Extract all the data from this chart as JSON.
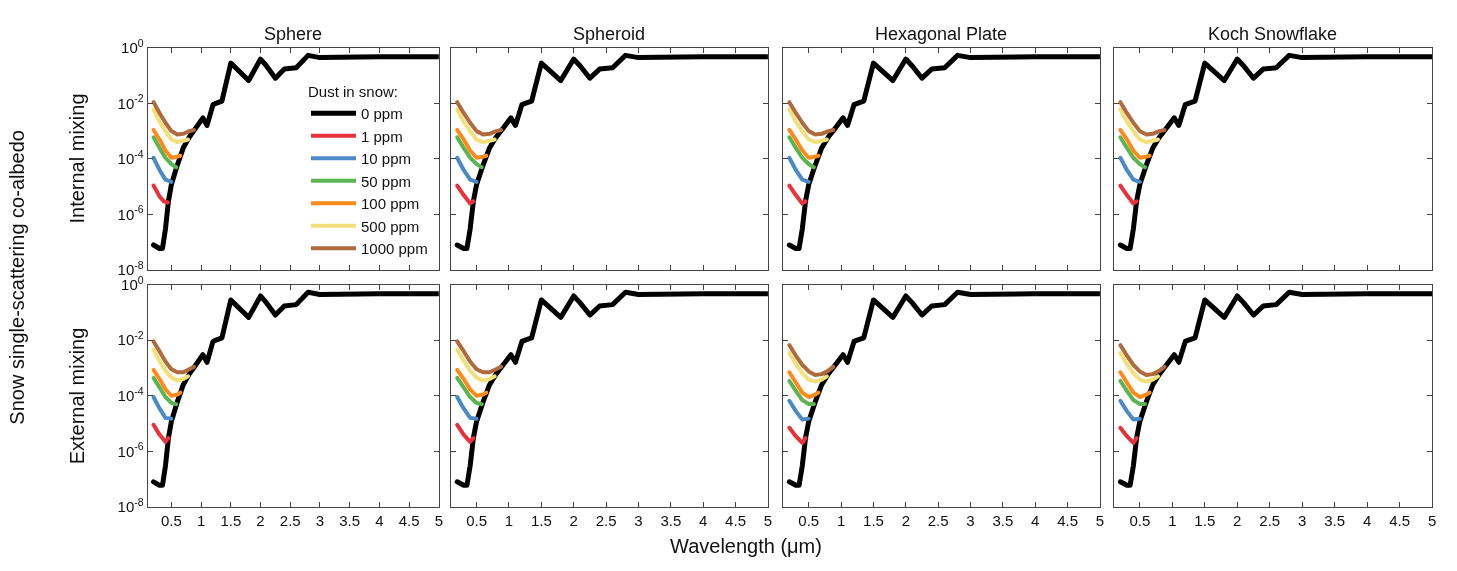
{
  "chart_data": [
    {
      "type": "line",
      "title": "Sphere",
      "ylabel": "Internal mixing",
      "annotations": [
        "Snow single-scattering co-albedo"
      ],
      "legend": "bottom right",
      "legend_title": "Dust in snow:",
      "log": "y",
      "tick_labels": "y",
      "xlim": [
        0.1,
        5
      ],
      "xticks": [
        0.5,
        1,
        1.5,
        2,
        2.5,
        3,
        3.5,
        4,
        4.5,
        5
      ],
      "ylim": [
        1e-08,
        1
      ],
      "yticks": [
        {
          "value": 1e-08,
          "label": "10$^{-8}$"
        },
        {
          "value": 1e-06,
          "label": "10$^{-6}$"
        },
        {
          "value": 0.0001,
          "label": "10$^{-4}$"
        },
        {
          "value": 0.01,
          "label": "10$^{-2}$"
        },
        {
          "value": 1,
          "label": "10$^{0}$"
        }
      ],
      "series": [
        {
          "name": "0 ppm",
          "color": "#000000",
          "x": [
            0.2,
            0.3,
            0.35,
            0.4,
            0.45,
            0.5,
            0.6,
            0.7,
            0.8,
            0.9,
            1.03,
            1.1,
            1.2,
            1.25,
            1.35,
            1.5,
            1.8,
            2.0,
            2.1,
            2.25,
            2.4,
            2.6,
            2.8,
            3.0,
            4.0,
            5.0
          ],
          "values": [
            8e-08,
            6e-08,
            6e-08,
            3e-07,
            3e-06,
            1.2e-05,
            6e-05,
            0.00025,
            0.0006,
            0.0012,
            0.003,
            0.0016,
            0.009,
            0.01,
            0.012,
            0.28,
            0.066,
            0.39,
            0.22,
            0.08,
            0.17,
            0.19,
            0.53,
            0.44,
            0.47,
            0.47
          ]
        },
        {
          "name": "1 ppm",
          "color": "#e8313a",
          "x": [
            0.2,
            0.3,
            0.37,
            0.44
          ],
          "values": [
            1.1e-05,
            4.5e-06,
            3e-06,
            2.7e-06
          ]
        },
        {
          "name": "10 ppm",
          "color": "#4a8ac6",
          "x": [
            0.2,
            0.3,
            0.4,
            0.5
          ],
          "values": [
            0.00011,
            4e-05,
            1.8e-05,
            1.5e-05
          ]
        },
        {
          "name": "50 ppm",
          "color": "#5ab552",
          "x": [
            0.2,
            0.3,
            0.4,
            0.5,
            0.58
          ],
          "values": [
            0.0006,
            0.00025,
            0.00011,
            6.5e-05,
            5e-05
          ]
        },
        {
          "name": "100 ppm",
          "color": "#ff8a1c",
          "x": [
            0.2,
            0.3,
            0.4,
            0.5,
            0.6,
            0.65
          ],
          "values": [
            0.0011,
            0.0005,
            0.0002,
            0.00011,
            0.00012,
            0.00013
          ]
        },
        {
          "name": "500 ppm",
          "color": "#f2e07a",
          "x": [
            0.2,
            0.3,
            0.4,
            0.5,
            0.6,
            0.7,
            0.78
          ],
          "values": [
            0.006,
            0.0022,
            0.001,
            0.0005,
            0.0004,
            0.00045,
            0.0005
          ]
        },
        {
          "name": "1000 ppm",
          "color": "#b06a3e",
          "x": [
            0.2,
            0.3,
            0.4,
            0.5,
            0.6,
            0.7,
            0.8,
            0.88
          ],
          "values": [
            0.011,
            0.0045,
            0.002,
            0.001,
            0.00076,
            0.0008,
            0.001,
            0.0011
          ]
        }
      ]
    },
    {
      "type": "line",
      "title": "Spheroid",
      "log": "y",
      "tick_labels": false,
      "xlim": [
        0.1,
        5
      ],
      "xticks": [
        0.5,
        1,
        1.5,
        2,
        2.5,
        3,
        3.5,
        4,
        4.5,
        5
      ],
      "ylim": [
        1e-08,
        1
      ],
      "yticks": [
        {
          "value": 1e-08,
          "label": "10$^{-8}$"
        },
        {
          "value": 1e-06,
          "label": "10$^{-6}$"
        },
        {
          "value": 0.0001,
          "label": "10$^{-4}$"
        },
        {
          "value": 0.01,
          "label": "10$^{-2}$"
        },
        {
          "value": 1,
          "label": "10$^{0}$"
        }
      ],
      "series": [
        {
          "color": "#000000",
          "x": [
            0.2,
            0.3,
            0.35,
            0.4,
            0.45,
            0.5,
            0.6,
            0.7,
            0.8,
            0.9,
            1.03,
            1.1,
            1.2,
            1.25,
            1.35,
            1.5,
            1.8,
            2.0,
            2.1,
            2.25,
            2.4,
            2.6,
            2.8,
            3.0,
            4.0,
            5.0
          ],
          "values": [
            8e-08,
            6e-08,
            6e-08,
            3e-07,
            3e-06,
            1.2e-05,
            6e-05,
            0.00025,
            0.0006,
            0.0012,
            0.003,
            0.0016,
            0.009,
            0.01,
            0.012,
            0.28,
            0.066,
            0.39,
            0.22,
            0.08,
            0.17,
            0.19,
            0.53,
            0.44,
            0.47,
            0.47
          ]
        },
        {
          "color": "#e8313a",
          "x": [
            0.2,
            0.3,
            0.4,
            0.45
          ],
          "values": [
            1.1e-05,
            5e-06,
            2.5e-06,
            3e-06
          ]
        },
        {
          "color": "#4a8ac6",
          "x": [
            0.2,
            0.3,
            0.4,
            0.5
          ],
          "values": [
            0.00011,
            4e-05,
            1.8e-05,
            1.5e-05
          ]
        },
        {
          "color": "#5ab552",
          "x": [
            0.2,
            0.3,
            0.4,
            0.5,
            0.58
          ],
          "values": [
            0.0006,
            0.00025,
            0.00011,
            6.5e-05,
            5e-05
          ]
        },
        {
          "color": "#ff8a1c",
          "x": [
            0.2,
            0.3,
            0.4,
            0.5,
            0.6,
            0.65
          ],
          "values": [
            0.0011,
            0.0005,
            0.0002,
            0.00011,
            0.00012,
            0.00013
          ]
        },
        {
          "color": "#f2e07a",
          "x": [
            0.2,
            0.3,
            0.4,
            0.5,
            0.6,
            0.7,
            0.78
          ],
          "values": [
            0.006,
            0.0022,
            0.001,
            0.0005,
            0.0004,
            0.00045,
            0.0005
          ]
        },
        {
          "color": "#b06a3e",
          "x": [
            0.2,
            0.3,
            0.4,
            0.5,
            0.6,
            0.7,
            0.8,
            0.88
          ],
          "values": [
            0.011,
            0.0045,
            0.002,
            0.001,
            0.00076,
            0.0008,
            0.001,
            0.0011
          ]
        }
      ]
    },
    {
      "type": "line",
      "title": "Hexagonal Plate",
      "log": "y",
      "tick_labels": false,
      "xlim": [
        0.1,
        5
      ],
      "xticks": [
        0.5,
        1,
        1.5,
        2,
        2.5,
        3,
        3.5,
        4,
        4.5,
        5
      ],
      "ylim": [
        1e-08,
        1
      ],
      "yticks": [
        {
          "value": 1e-08,
          "label": "10$^{-8}$"
        },
        {
          "value": 1e-06,
          "label": "10$^{-6}$"
        },
        {
          "value": 0.0001,
          "label": "10$^{-4}$"
        },
        {
          "value": 0.01,
          "label": "10$^{-2}$"
        },
        {
          "value": 1,
          "label": "10$^{0}$"
        }
      ],
      "series": [
        {
          "color": "#000000",
          "x": [
            0.2,
            0.3,
            0.35,
            0.4,
            0.45,
            0.5,
            0.6,
            0.7,
            0.8,
            0.9,
            1.03,
            1.1,
            1.2,
            1.25,
            1.35,
            1.5,
            1.8,
            2.0,
            2.1,
            2.25,
            2.4,
            2.6,
            2.8,
            3.0,
            4.0,
            5.0
          ],
          "values": [
            8e-08,
            6e-08,
            6e-08,
            3e-07,
            3e-06,
            1.2e-05,
            6e-05,
            0.00025,
            0.0006,
            0.0012,
            0.003,
            0.0016,
            0.009,
            0.01,
            0.012,
            0.28,
            0.066,
            0.39,
            0.22,
            0.08,
            0.17,
            0.19,
            0.53,
            0.44,
            0.47,
            0.47
          ]
        },
        {
          "color": "#e8313a",
          "x": [
            0.2,
            0.3,
            0.4,
            0.45
          ],
          "values": [
            1.1e-05,
            5e-06,
            2.5e-06,
            3e-06
          ]
        },
        {
          "color": "#4a8ac6",
          "x": [
            0.2,
            0.3,
            0.4,
            0.5
          ],
          "values": [
            0.00011,
            4e-05,
            1.8e-05,
            1.5e-05
          ]
        },
        {
          "color": "#5ab552",
          "x": [
            0.2,
            0.3,
            0.4,
            0.5,
            0.58
          ],
          "values": [
            0.0006,
            0.00025,
            0.00011,
            6.5e-05,
            5e-05
          ]
        },
        {
          "color": "#ff8a1c",
          "x": [
            0.2,
            0.3,
            0.4,
            0.5,
            0.6,
            0.65
          ],
          "values": [
            0.0011,
            0.0005,
            0.0002,
            0.00011,
            0.00012,
            0.00013
          ]
        },
        {
          "color": "#f2e07a",
          "x": [
            0.2,
            0.3,
            0.4,
            0.5,
            0.6,
            0.7,
            0.78
          ],
          "values": [
            0.006,
            0.0022,
            0.001,
            0.0005,
            0.0004,
            0.00045,
            0.0005
          ]
        },
        {
          "color": "#b06a3e",
          "x": [
            0.2,
            0.3,
            0.4,
            0.5,
            0.6,
            0.7,
            0.8,
            0.88
          ],
          "values": [
            0.011,
            0.0045,
            0.002,
            0.001,
            0.00076,
            0.0008,
            0.001,
            0.0011
          ]
        }
      ]
    },
    {
      "type": "line",
      "title": "Koch Snowflake",
      "log": "y",
      "tick_labels": false,
      "xlim": [
        0.1,
        5
      ],
      "xticks": [
        0.5,
        1,
        1.5,
        2,
        2.5,
        3,
        3.5,
        4,
        4.5,
        5
      ],
      "ylim": [
        1e-08,
        1
      ],
      "yticks": [
        {
          "value": 1e-08,
          "label": "10$^{-8}$"
        },
        {
          "value": 1e-06,
          "label": "10$^{-6}$"
        },
        {
          "value": 0.0001,
          "label": "10$^{-4}$"
        },
        {
          "value": 0.01,
          "label": "10$^{-2}$"
        },
        {
          "value": 1,
          "label": "10$^{0}$"
        }
      ],
      "series": [
        {
          "color": "#000000",
          "x": [
            0.2,
            0.3,
            0.35,
            0.4,
            0.45,
            0.5,
            0.6,
            0.7,
            0.8,
            0.9,
            1.03,
            1.1,
            1.2,
            1.25,
            1.35,
            1.5,
            1.8,
            2.0,
            2.1,
            2.25,
            2.4,
            2.6,
            2.8,
            3.0,
            4.0,
            5.0
          ],
          "values": [
            8e-08,
            6e-08,
            6e-08,
            3e-07,
            3e-06,
            1.2e-05,
            6e-05,
            0.00025,
            0.0006,
            0.0012,
            0.003,
            0.0016,
            0.009,
            0.01,
            0.012,
            0.28,
            0.066,
            0.39,
            0.22,
            0.08,
            0.17,
            0.19,
            0.53,
            0.44,
            0.47,
            0.47
          ]
        },
        {
          "color": "#e8313a",
          "x": [
            0.2,
            0.3,
            0.4,
            0.45
          ],
          "values": [
            1.1e-05,
            5e-06,
            2.5e-06,
            3e-06
          ]
        },
        {
          "color": "#4a8ac6",
          "x": [
            0.2,
            0.3,
            0.4,
            0.5
          ],
          "values": [
            0.00011,
            4e-05,
            1.8e-05,
            1.5e-05
          ]
        },
        {
          "color": "#5ab552",
          "x": [
            0.2,
            0.3,
            0.4,
            0.5,
            0.58
          ],
          "values": [
            0.0006,
            0.00025,
            0.00011,
            6.5e-05,
            5e-05
          ]
        },
        {
          "color": "#ff8a1c",
          "x": [
            0.2,
            0.3,
            0.4,
            0.5,
            0.6,
            0.65
          ],
          "values": [
            0.0011,
            0.0005,
            0.0002,
            0.00011,
            0.00012,
            0.00013
          ]
        },
        {
          "color": "#f2e07a",
          "x": [
            0.2,
            0.3,
            0.4,
            0.5,
            0.6,
            0.7,
            0.78
          ],
          "values": [
            0.006,
            0.0022,
            0.001,
            0.0005,
            0.0004,
            0.00045,
            0.0005
          ]
        },
        {
          "color": "#b06a3e",
          "x": [
            0.2,
            0.3,
            0.4,
            0.5,
            0.6,
            0.7,
            0.8,
            0.88
          ],
          "values": [
            0.011,
            0.0045,
            0.002,
            0.001,
            0.00076,
            0.0008,
            0.001,
            0.0011
          ]
        }
      ]
    },
    {
      "type": "line",
      "ylabel": "External mixing",
      "log": "y",
      "xlim": [
        0.1,
        5
      ],
      "xticks": [
        0.5,
        1,
        1.5,
        2,
        2.5,
        3,
        3.5,
        4,
        4.5,
        5
      ],
      "ylim": [
        1e-08,
        1
      ],
      "yticks": [
        {
          "value": 1e-08,
          "label": "10$^{-8}$"
        },
        {
          "value": 1e-06,
          "label": "10$^{-6}$"
        },
        {
          "value": 0.0001,
          "label": "10$^{-4}$"
        },
        {
          "value": 0.01,
          "label": "10$^{-2}$"
        },
        {
          "value": 1,
          "label": "10$^{0}$"
        }
      ],
      "series": [
        {
          "color": "#000000",
          "x": [
            0.2,
            0.3,
            0.35,
            0.4,
            0.45,
            0.5,
            0.6,
            0.7,
            0.8,
            0.9,
            1.03,
            1.1,
            1.2,
            1.25,
            1.35,
            1.5,
            1.8,
            2.0,
            2.1,
            2.25,
            2.4,
            2.6,
            2.8,
            3.0,
            4.0,
            5.0
          ],
          "values": [
            8e-08,
            6e-08,
            6e-08,
            3e-07,
            3e-06,
            1.2e-05,
            6e-05,
            0.00025,
            0.0006,
            0.0012,
            0.003,
            0.0016,
            0.009,
            0.01,
            0.012,
            0.28,
            0.066,
            0.39,
            0.22,
            0.08,
            0.17,
            0.19,
            0.53,
            0.44,
            0.47,
            0.47
          ]
        },
        {
          "color": "#e8313a",
          "x": [
            0.2,
            0.3,
            0.4,
            0.45
          ],
          "values": [
            9e-06,
            4e-06,
            2.2e-06,
            3e-06
          ]
        },
        {
          "color": "#4a8ac6",
          "x": [
            0.2,
            0.3,
            0.4,
            0.5
          ],
          "values": [
            9e-05,
            3.5e-05,
            1.6e-05,
            1.5e-05
          ]
        },
        {
          "color": "#5ab552",
          "x": [
            0.2,
            0.3,
            0.4,
            0.5,
            0.58
          ],
          "values": [
            0.00044,
            0.0002,
            9e-05,
            5.5e-05,
            5e-05
          ]
        },
        {
          "color": "#ff8a1c",
          "x": [
            0.2,
            0.3,
            0.4,
            0.5,
            0.6,
            0.65
          ],
          "values": [
            0.00085,
            0.0004,
            0.00017,
            0.0001,
            0.00011,
            0.00013
          ]
        },
        {
          "color": "#f2e07a",
          "x": [
            0.2,
            0.3,
            0.4,
            0.5,
            0.6,
            0.7,
            0.78
          ],
          "values": [
            0.0045,
            0.0018,
            0.0008,
            0.00045,
            0.00035,
            0.0004,
            0.0005
          ]
        },
        {
          "color": "#b06a3e",
          "x": [
            0.2,
            0.3,
            0.4,
            0.5,
            0.6,
            0.7,
            0.8,
            0.88
          ],
          "values": [
            0.009,
            0.004,
            0.0017,
            0.0009,
            0.0007,
            0.0007,
            0.0009,
            0.0011
          ]
        }
      ]
    },
    {
      "type": "line",
      "xlabel": "Wavelength (μm)",
      "log": "y",
      "tick_labels": "x",
      "xlim": [
        0.1,
        5
      ],
      "xticks": [
        0.5,
        1,
        1.5,
        2,
        2.5,
        3,
        3.5,
        4,
        4.5,
        5
      ],
      "ylim": [
        1e-08,
        1
      ],
      "yticks": [
        {
          "value": 1e-08,
          "label": "10$^{-8}$"
        },
        {
          "value": 1e-06,
          "label": "10$^{-6}$"
        },
        {
          "value": 0.0001,
          "label": "10$^{-4}$"
        },
        {
          "value": 0.01,
          "label": "10$^{-2}$"
        },
        {
          "value": 1,
          "label": "10$^{0}$"
        }
      ],
      "series": [
        {
          "color": "#000000",
          "x": [
            0.2,
            0.3,
            0.35,
            0.4,
            0.45,
            0.5,
            0.6,
            0.7,
            0.8,
            0.9,
            1.03,
            1.1,
            1.2,
            1.25,
            1.35,
            1.5,
            1.8,
            2.0,
            2.1,
            2.25,
            2.4,
            2.6,
            2.8,
            3.0,
            4.0,
            5.0
          ],
          "values": [
            8e-08,
            6e-08,
            6e-08,
            3e-07,
            3e-06,
            1.2e-05,
            6e-05,
            0.00025,
            0.0006,
            0.0012,
            0.003,
            0.0016,
            0.009,
            0.01,
            0.012,
            0.28,
            0.066,
            0.39,
            0.22,
            0.08,
            0.17,
            0.19,
            0.53,
            0.44,
            0.47,
            0.47
          ]
        },
        {
          "color": "#e8313a",
          "x": [
            0.2,
            0.3,
            0.4,
            0.45
          ],
          "values": [
            9e-06,
            4e-06,
            2.2e-06,
            3e-06
          ]
        },
        {
          "color": "#4a8ac6",
          "x": [
            0.2,
            0.3,
            0.4,
            0.5
          ],
          "values": [
            9e-05,
            3.5e-05,
            1.6e-05,
            1.5e-05
          ]
        },
        {
          "color": "#5ab552",
          "x": [
            0.2,
            0.3,
            0.4,
            0.5,
            0.58
          ],
          "values": [
            0.00044,
            0.0002,
            9e-05,
            5.5e-05,
            5e-05
          ]
        },
        {
          "color": "#ff8a1c",
          "x": [
            0.2,
            0.3,
            0.4,
            0.5,
            0.6,
            0.65
          ],
          "values": [
            0.00085,
            0.0004,
            0.00017,
            0.0001,
            0.00011,
            0.00013
          ]
        },
        {
          "color": "#f2e07a",
          "x": [
            0.2,
            0.3,
            0.4,
            0.5,
            0.6,
            0.7,
            0.78
          ],
          "values": [
            0.0045,
            0.0018,
            0.0008,
            0.00045,
            0.00035,
            0.0004,
            0.0005
          ]
        },
        {
          "color": "#b06a3e",
          "x": [
            0.2,
            0.3,
            0.4,
            0.5,
            0.6,
            0.7,
            0.8,
            0.88
          ],
          "values": [
            0.009,
            0.004,
            0.0017,
            0.0009,
            0.0007,
            0.0007,
            0.0009,
            0.0011
          ]
        }
      ]
    },
    {
      "type": "line",
      "log": "y",
      "tick_labels": "x",
      "xlim": [
        0.1,
        5
      ],
      "xticks": [
        0.5,
        1,
        1.5,
        2,
        2.5,
        3,
        3.5,
        4,
        4.5,
        5
      ],
      "ylim": [
        1e-08,
        1
      ],
      "yticks": [
        {
          "value": 1e-08,
          "label": "10$^{-8}$"
        },
        {
          "value": 1e-06,
          "label": "10$^{-6}$"
        },
        {
          "value": 0.0001,
          "label": "10$^{-4}$"
        },
        {
          "value": 0.01,
          "label": "10$^{-2}$"
        },
        {
          "value": 1,
          "label": "10$^{0}$"
        }
      ],
      "series": [
        {
          "color": "#000000",
          "x": [
            0.2,
            0.3,
            0.35,
            0.4,
            0.45,
            0.5,
            0.6,
            0.7,
            0.8,
            0.9,
            1.03,
            1.1,
            1.2,
            1.25,
            1.35,
            1.5,
            1.8,
            2.0,
            2.1,
            2.25,
            2.4,
            2.6,
            2.8,
            3.0,
            4.0,
            5.0
          ],
          "values": [
            8e-08,
            6e-08,
            6e-08,
            3e-07,
            3e-06,
            1.2e-05,
            6e-05,
            0.00025,
            0.0006,
            0.0012,
            0.003,
            0.0016,
            0.009,
            0.01,
            0.012,
            0.28,
            0.066,
            0.39,
            0.22,
            0.08,
            0.17,
            0.19,
            0.53,
            0.44,
            0.47,
            0.47
          ]
        },
        {
          "color": "#e8313a",
          "x": [
            0.2,
            0.3,
            0.4,
            0.45
          ],
          "values": [
            7e-06,
            3.5e-06,
            2e-06,
            3e-06
          ]
        },
        {
          "color": "#4a8ac6",
          "x": [
            0.2,
            0.3,
            0.4,
            0.5
          ],
          "values": [
            6.6e-05,
            2.8e-05,
            1.4e-05,
            1.5e-05
          ]
        },
        {
          "color": "#5ab552",
          "x": [
            0.2,
            0.3,
            0.4,
            0.5,
            0.58
          ],
          "values": [
            0.00034,
            0.00015,
            7e-05,
            5e-05,
            5e-05
          ]
        },
        {
          "color": "#ff8a1c",
          "x": [
            0.2,
            0.3,
            0.4,
            0.5,
            0.6,
            0.65
          ],
          "values": [
            0.0007,
            0.0003,
            0.00013,
            9e-05,
            0.00011,
            0.00013
          ]
        },
        {
          "color": "#f2e07a",
          "x": [
            0.2,
            0.3,
            0.4,
            0.5,
            0.6,
            0.7,
            0.78
          ],
          "values": [
            0.0034,
            0.0014,
            0.00065,
            0.00038,
            0.00032,
            0.00038,
            0.0005
          ]
        },
        {
          "color": "#b06a3e",
          "x": [
            0.2,
            0.3,
            0.4,
            0.5,
            0.6,
            0.7,
            0.8,
            0.88
          ],
          "values": [
            0.0066,
            0.0028,
            0.0013,
            0.00075,
            0.00056,
            0.0006,
            0.0008,
            0.0011
          ]
        }
      ]
    },
    {
      "type": "line",
      "log": "y",
      "tick_labels": "x",
      "xlim": [
        0.1,
        5
      ],
      "xticks": [
        0.5,
        1,
        1.5,
        2,
        2.5,
        3,
        3.5,
        4,
        4.5,
        5
      ],
      "ylim": [
        1e-08,
        1
      ],
      "yticks": [
        {
          "value": 1e-08,
          "label": "10$^{-8}$"
        },
        {
          "value": 1e-06,
          "label": "10$^{-6}$"
        },
        {
          "value": 0.0001,
          "label": "10$^{-4}$"
        },
        {
          "value": 0.01,
          "label": "10$^{-2}$"
        },
        {
          "value": 1,
          "label": "10$^{0}$"
        }
      ],
      "series": [
        {
          "color": "#000000",
          "x": [
            0.2,
            0.3,
            0.35,
            0.4,
            0.45,
            0.5,
            0.6,
            0.7,
            0.8,
            0.9,
            1.03,
            1.1,
            1.2,
            1.25,
            1.35,
            1.5,
            1.8,
            2.0,
            2.1,
            2.25,
            2.4,
            2.6,
            2.8,
            3.0,
            4.0,
            5.0
          ],
          "values": [
            8e-08,
            6e-08,
            6e-08,
            3e-07,
            3e-06,
            1.2e-05,
            6e-05,
            0.00025,
            0.0006,
            0.0012,
            0.003,
            0.0016,
            0.009,
            0.01,
            0.012,
            0.28,
            0.066,
            0.39,
            0.22,
            0.08,
            0.17,
            0.19,
            0.53,
            0.44,
            0.47,
            0.47
          ]
        },
        {
          "color": "#e8313a",
          "x": [
            0.2,
            0.3,
            0.4,
            0.45
          ],
          "values": [
            7e-06,
            3.5e-06,
            2e-06,
            3e-06
          ]
        },
        {
          "color": "#4a8ac6",
          "x": [
            0.2,
            0.3,
            0.4,
            0.5
          ],
          "values": [
            6.6e-05,
            2.8e-05,
            1.4e-05,
            1.5e-05
          ]
        },
        {
          "color": "#5ab552",
          "x": [
            0.2,
            0.3,
            0.4,
            0.5,
            0.58
          ],
          "values": [
            0.00034,
            0.00015,
            7e-05,
            5e-05,
            5e-05
          ]
        },
        {
          "color": "#ff8a1c",
          "x": [
            0.2,
            0.3,
            0.4,
            0.5,
            0.6,
            0.65
          ],
          "values": [
            0.0007,
            0.0003,
            0.00013,
            9e-05,
            0.00011,
            0.00013
          ]
        },
        {
          "color": "#f2e07a",
          "x": [
            0.2,
            0.3,
            0.4,
            0.5,
            0.6,
            0.7,
            0.78
          ],
          "values": [
            0.0034,
            0.0014,
            0.00065,
            0.00038,
            0.00032,
            0.00038,
            0.0005
          ]
        },
        {
          "color": "#b06a3e",
          "x": [
            0.2,
            0.3,
            0.4,
            0.5,
            0.6,
            0.7,
            0.8,
            0.88
          ],
          "values": [
            0.0066,
            0.0028,
            0.0013,
            0.00075,
            0.00056,
            0.0006,
            0.0008,
            0.0011
          ]
        }
      ]
    }
  ]
}
